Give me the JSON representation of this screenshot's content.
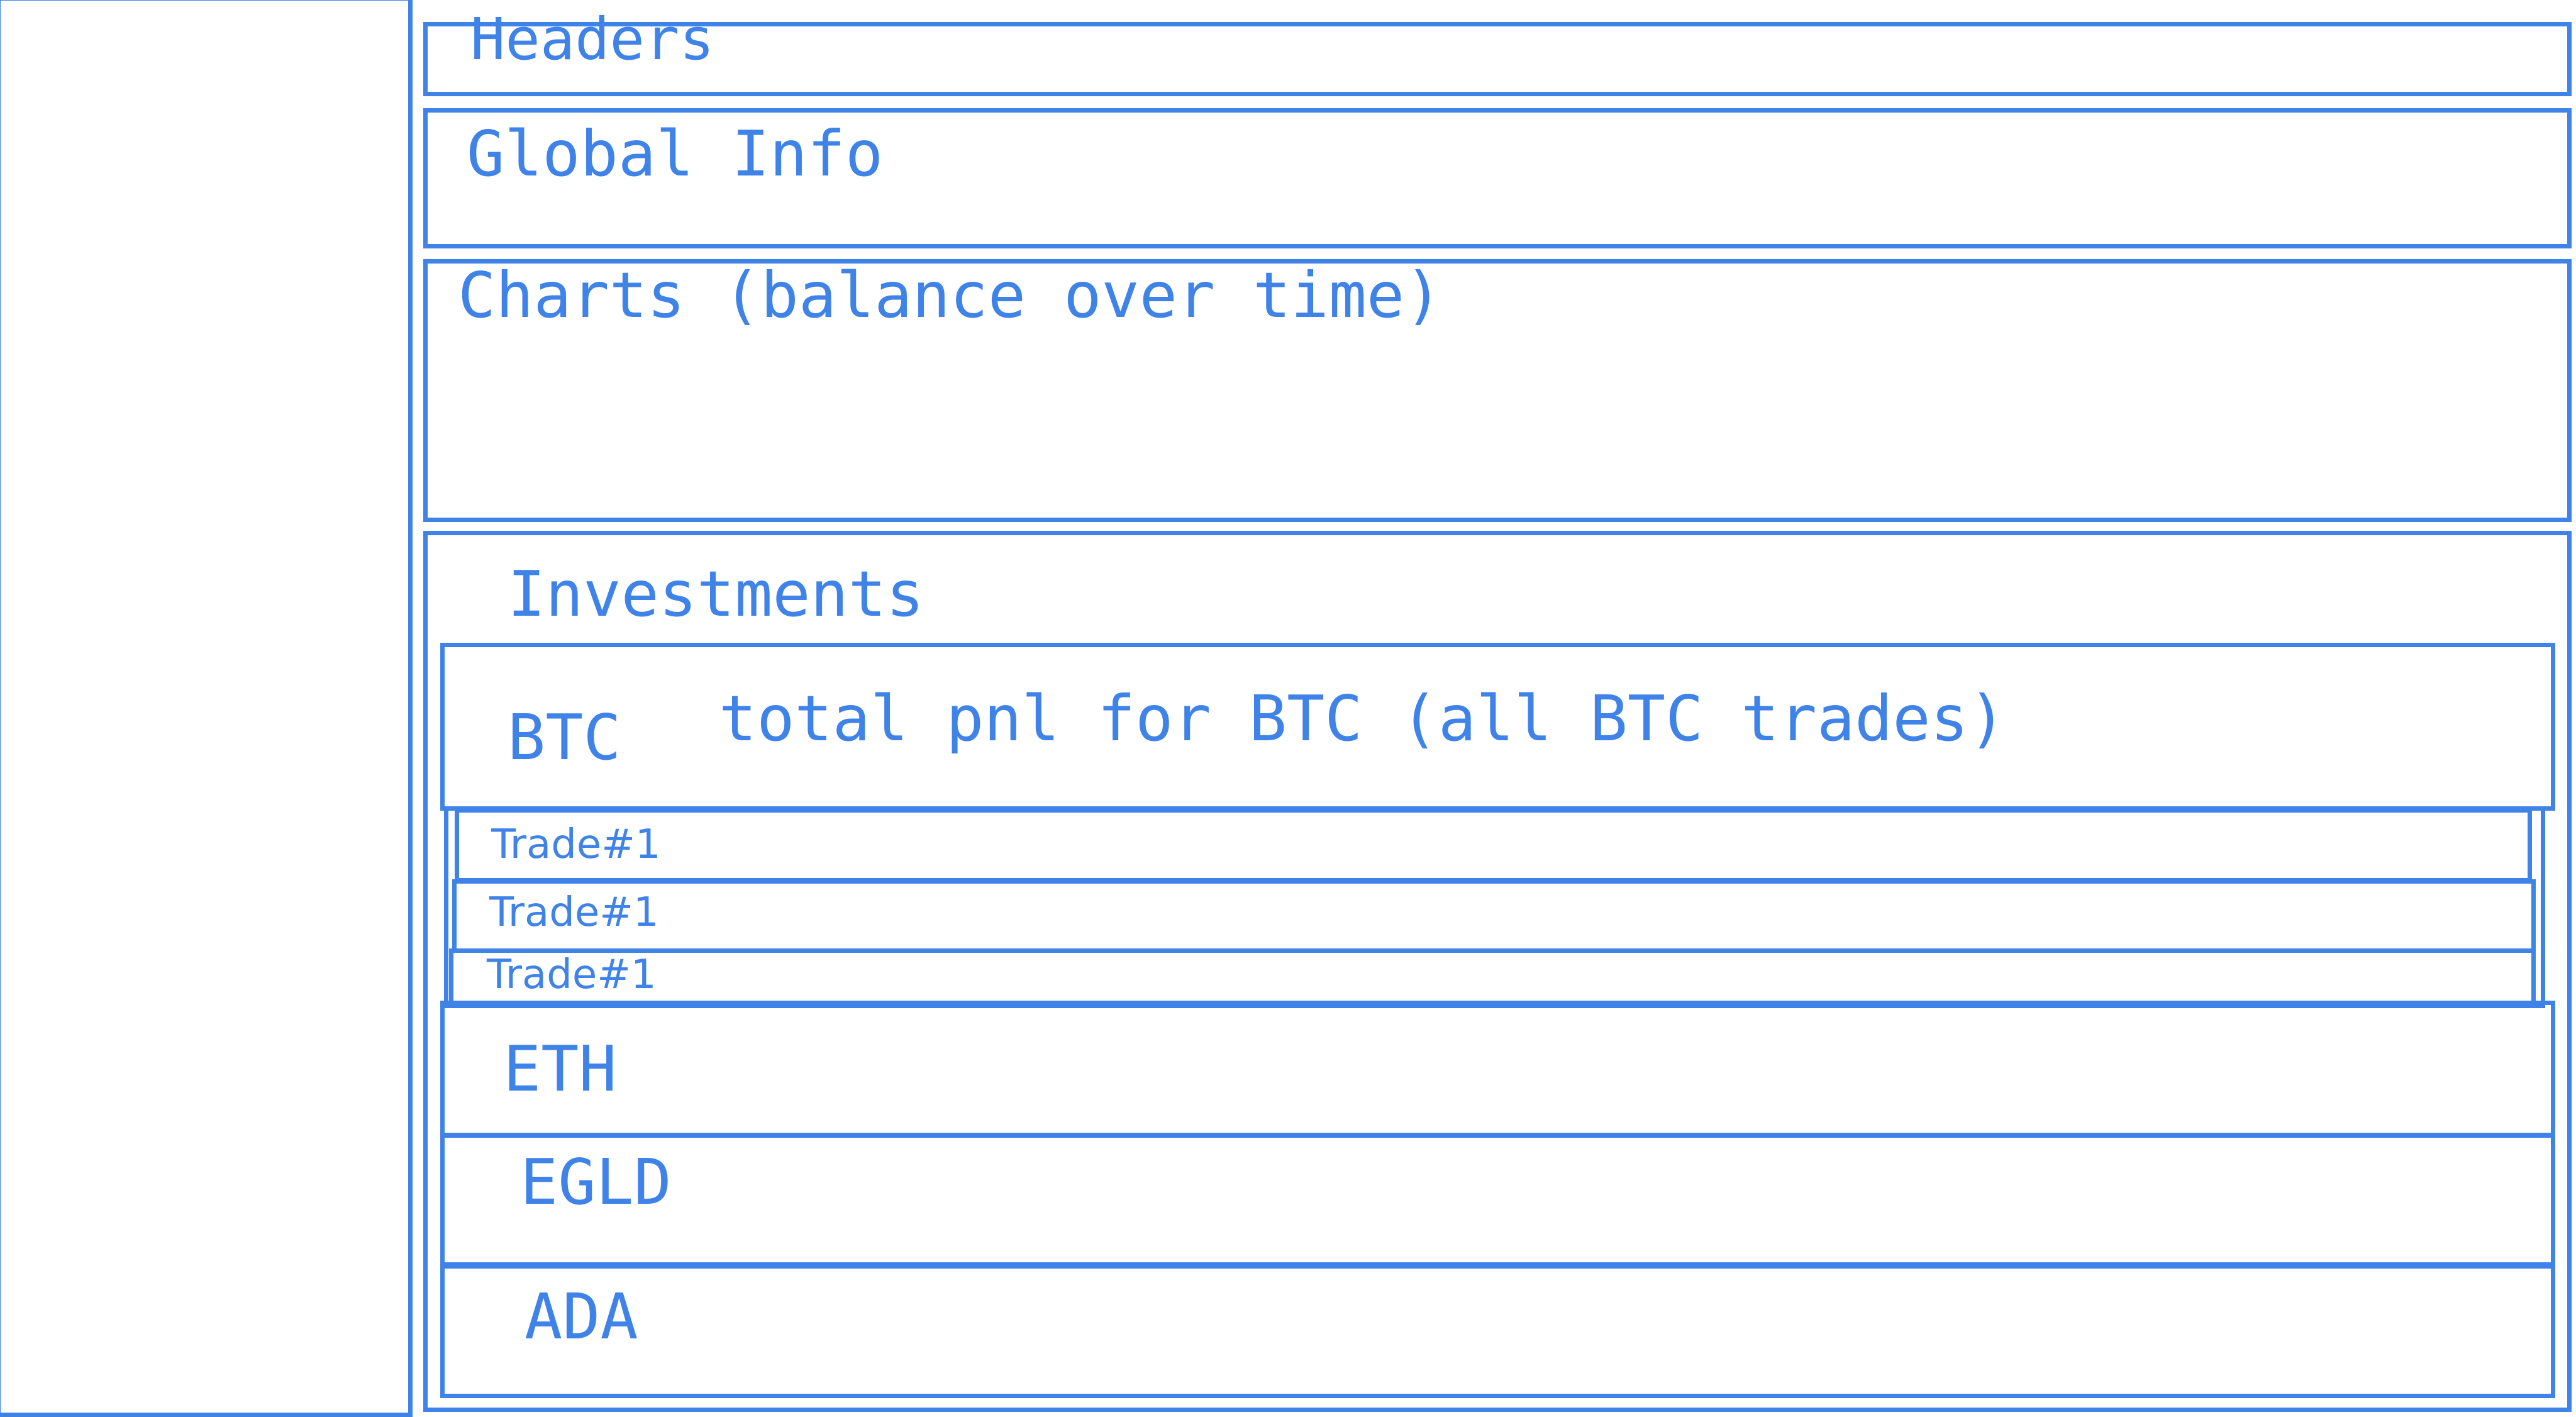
{
  "colors": {
    "stroke": "#3f83e8",
    "background": "#ffffff"
  },
  "sections": {
    "headers": "Headers",
    "global_info": "Global Info",
    "charts": "Charts (balance over time)",
    "investments": "Investments"
  },
  "assets": {
    "btc": {
      "name": "BTC",
      "summary": "total pnl for BTC (all BTC trades)",
      "trades": [
        "Trade#1",
        "Trade#1",
        "Trade#1"
      ]
    },
    "eth": {
      "name": "ETH"
    },
    "egld": {
      "name": "EGLD"
    },
    "ada": {
      "name": "ADA"
    }
  }
}
